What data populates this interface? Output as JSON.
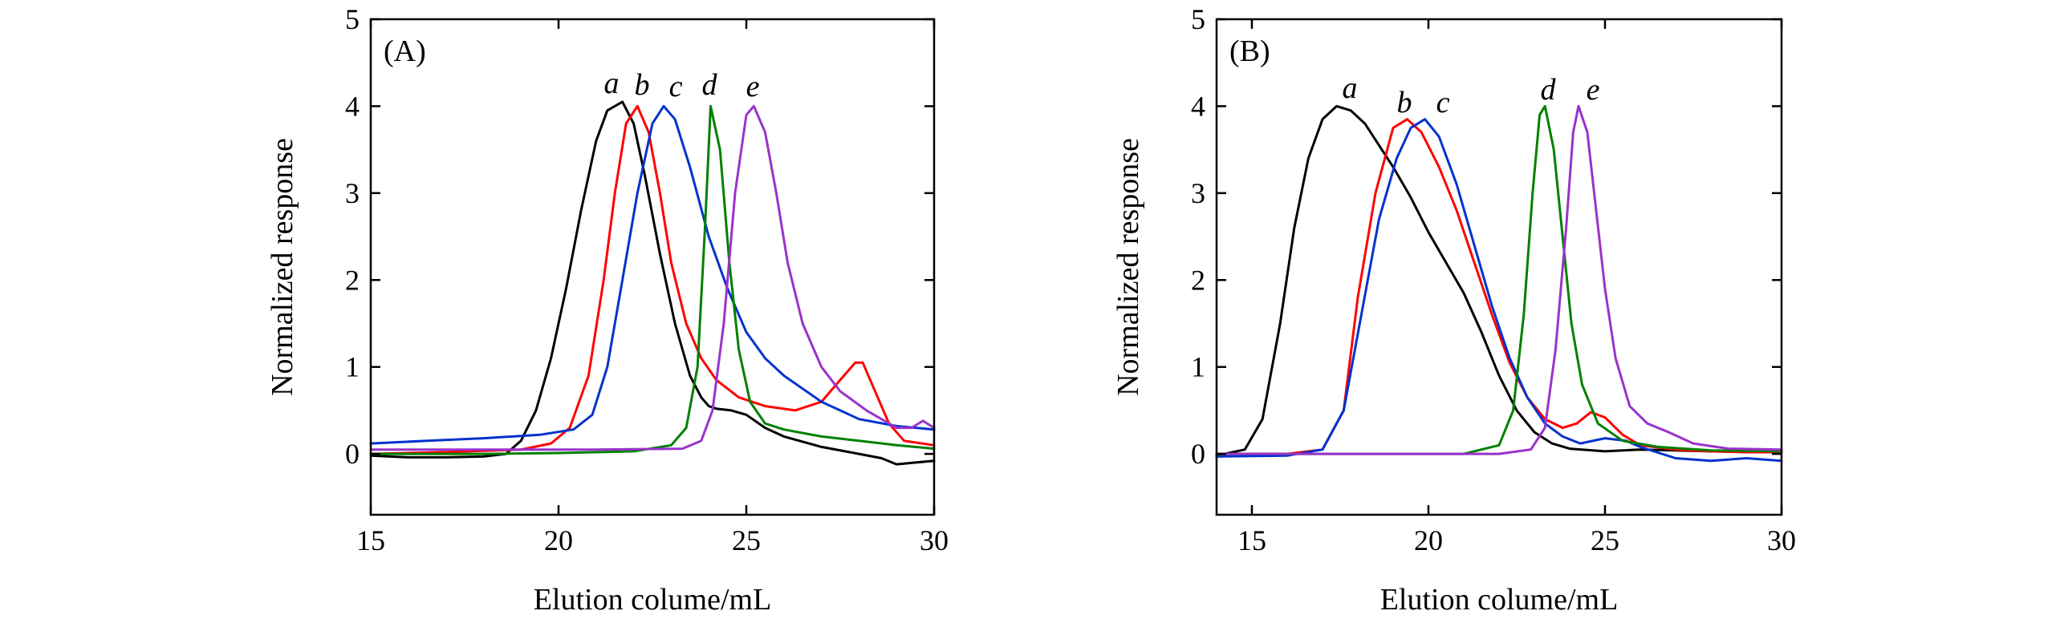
{
  "chart_data": [
    {
      "type": "line",
      "panel_label": "(A)",
      "xlabel": "Elution colume/mL",
      "ylabel": "Normalized response",
      "xlim": [
        15,
        30
      ],
      "ylim": [
        -0.7,
        5
      ],
      "xticks": [
        15,
        20,
        25,
        30
      ],
      "yticks": [
        0,
        1,
        2,
        3,
        4,
        5
      ],
      "xtick_labels": [
        "15",
        "20",
        "25",
        "30"
      ],
      "ytick_labels": [
        "0",
        "1",
        "2",
        "3",
        "4",
        "5"
      ],
      "grid": false,
      "series": [
        {
          "name": "a",
          "color": "#000000",
          "x": [
            15,
            16,
            17,
            18,
            18.6,
            19,
            19.4,
            19.8,
            20.2,
            20.6,
            21.0,
            21.3,
            21.7,
            22.0,
            22.3,
            22.7,
            23.1,
            23.5,
            23.8,
            24.0,
            24.2,
            24.6,
            25.0,
            25.5,
            26.0,
            27.0,
            28.0,
            28.6,
            29.0,
            29.5,
            30
          ],
          "y": [
            -0.02,
            -0.04,
            -0.04,
            -0.03,
            0.0,
            0.15,
            0.5,
            1.1,
            1.9,
            2.8,
            3.6,
            3.95,
            4.05,
            3.8,
            3.2,
            2.3,
            1.5,
            0.9,
            0.65,
            0.55,
            0.52,
            0.5,
            0.45,
            0.3,
            0.2,
            0.08,
            0.0,
            -0.05,
            -0.12,
            -0.1,
            -0.08
          ]
        },
        {
          "name": "b",
          "color": "#ff0000",
          "x": [
            15,
            17,
            19,
            19.8,
            20.3,
            20.8,
            21.2,
            21.5,
            21.8,
            22.1,
            22.4,
            22.7,
            23.0,
            23.4,
            23.8,
            24.2,
            24.8,
            25.5,
            26.3,
            27.0,
            27.5,
            27.9,
            28.1,
            28.4,
            28.8,
            29.2,
            30
          ],
          "y": [
            0.0,
            0.02,
            0.05,
            0.12,
            0.3,
            0.9,
            2.0,
            3.0,
            3.8,
            4.0,
            3.7,
            3.0,
            2.2,
            1.5,
            1.1,
            0.85,
            0.65,
            0.55,
            0.5,
            0.6,
            0.85,
            1.05,
            1.05,
            0.75,
            0.35,
            0.15,
            0.1
          ]
        },
        {
          "name": "c",
          "color": "#0033cc",
          "x": [
            15,
            16.5,
            18,
            19.5,
            20.4,
            20.9,
            21.3,
            21.7,
            22.1,
            22.5,
            22.8,
            23.1,
            23.5,
            24.0,
            24.5,
            25.0,
            25.5,
            26.0,
            26.5,
            27.0,
            27.5,
            28.0,
            29.0,
            30
          ],
          "y": [
            0.12,
            0.15,
            0.18,
            0.22,
            0.28,
            0.45,
            1.0,
            2.0,
            3.0,
            3.8,
            4.0,
            3.85,
            3.3,
            2.5,
            1.9,
            1.4,
            1.1,
            0.9,
            0.75,
            0.6,
            0.5,
            0.4,
            0.32,
            0.28
          ]
        },
        {
          "name": "d",
          "color": "#008000",
          "x": [
            15,
            18,
            20,
            22,
            23.0,
            23.4,
            23.7,
            23.9,
            24.05,
            24.3,
            24.55,
            24.8,
            25.1,
            25.5,
            26.0,
            27.0,
            28.0,
            29.0,
            30
          ],
          "y": [
            0.0,
            0.0,
            0.01,
            0.03,
            0.1,
            0.3,
            1.0,
            2.6,
            4.0,
            3.5,
            2.2,
            1.2,
            0.6,
            0.35,
            0.28,
            0.2,
            0.15,
            0.1,
            0.06
          ]
        },
        {
          "name": "e",
          "color": "#9933cc",
          "x": [
            15,
            18,
            21,
            23.3,
            23.8,
            24.1,
            24.4,
            24.7,
            25.0,
            25.2,
            25.5,
            25.8,
            26.1,
            26.5,
            27.0,
            27.5,
            28.2,
            29.0,
            29.4,
            29.7,
            30
          ],
          "y": [
            0.05,
            0.05,
            0.05,
            0.06,
            0.15,
            0.5,
            1.5,
            3.0,
            3.9,
            4.0,
            3.7,
            3.0,
            2.2,
            1.5,
            1.0,
            0.72,
            0.5,
            0.3,
            0.3,
            0.38,
            0.3
          ]
        }
      ]
    },
    {
      "type": "line",
      "panel_label": "(B)",
      "xlabel": "Elution colume/mL",
      "ylabel": "Normalized response",
      "xlim": [
        14,
        30
      ],
      "ylim": [
        -0.7,
        5
      ],
      "xticks": [
        15,
        20,
        25,
        30
      ],
      "yticks": [
        0,
        1,
        2,
        3,
        4,
        5
      ],
      "xtick_labels": [
        "15",
        "20",
        "25",
        "30"
      ],
      "ytick_labels": [
        "0",
        "1",
        "2",
        "3",
        "4",
        "5"
      ],
      "grid": false,
      "series": [
        {
          "name": "a",
          "color": "#000000",
          "x": [
            14,
            14.8,
            15.3,
            15.8,
            16.2,
            16.6,
            17.0,
            17.4,
            17.8,
            18.2,
            18.6,
            19.0,
            19.5,
            20.0,
            20.5,
            21.0,
            21.5,
            22.0,
            22.5,
            23.0,
            23.5,
            24.0,
            25.0,
            26.0,
            27.0,
            28.0,
            29.0,
            30
          ],
          "y": [
            -0.02,
            0.05,
            0.4,
            1.5,
            2.6,
            3.4,
            3.85,
            4.0,
            3.95,
            3.8,
            3.55,
            3.3,
            2.95,
            2.55,
            2.2,
            1.85,
            1.4,
            0.9,
            0.5,
            0.25,
            0.12,
            0.06,
            0.03,
            0.05,
            0.04,
            0.03,
            0.02,
            0.02
          ]
        },
        {
          "name": "b",
          "color": "#ff0000",
          "x": [
            14,
            16,
            17,
            17.6,
            18.0,
            18.5,
            19.0,
            19.4,
            19.8,
            20.3,
            20.8,
            21.3,
            21.8,
            22.3,
            22.8,
            23.3,
            23.8,
            24.2,
            24.6,
            25.0,
            25.5,
            26.0,
            27.0,
            28.0,
            29.0,
            30
          ],
          "y": [
            0.0,
            0.0,
            0.05,
            0.5,
            1.8,
            3.0,
            3.75,
            3.85,
            3.7,
            3.3,
            2.8,
            2.2,
            1.6,
            1.05,
            0.65,
            0.4,
            0.3,
            0.35,
            0.48,
            0.42,
            0.22,
            0.1,
            0.05,
            0.03,
            0.02,
            0.02
          ]
        },
        {
          "name": "c",
          "color": "#0033cc",
          "x": [
            14,
            16,
            17,
            17.6,
            18.1,
            18.6,
            19.1,
            19.5,
            19.9,
            20.3,
            20.8,
            21.3,
            21.8,
            22.3,
            22.8,
            23.3,
            23.8,
            24.3,
            25.0,
            25.6,
            26.0,
            27.0,
            28.0,
            29.0,
            30
          ],
          "y": [
            -0.03,
            -0.02,
            0.05,
            0.5,
            1.6,
            2.7,
            3.4,
            3.75,
            3.85,
            3.65,
            3.1,
            2.4,
            1.7,
            1.1,
            0.65,
            0.35,
            0.2,
            0.12,
            0.18,
            0.15,
            0.08,
            -0.05,
            -0.08,
            -0.05,
            -0.08
          ]
        },
        {
          "name": "d",
          "color": "#008000",
          "x": [
            14,
            18,
            21,
            22.0,
            22.4,
            22.7,
            22.95,
            23.15,
            23.3,
            23.55,
            23.8,
            24.05,
            24.35,
            24.8,
            25.5,
            26.5,
            28.0,
            30
          ],
          "y": [
            0.0,
            0.0,
            0.0,
            0.1,
            0.5,
            1.6,
            3.0,
            3.9,
            4.0,
            3.5,
            2.5,
            1.5,
            0.8,
            0.35,
            0.15,
            0.08,
            0.04,
            0.03
          ]
        },
        {
          "name": "e",
          "color": "#9933cc",
          "x": [
            14,
            18,
            22,
            22.9,
            23.3,
            23.6,
            23.9,
            24.1,
            24.25,
            24.5,
            24.75,
            25.0,
            25.3,
            25.7,
            26.2,
            26.8,
            27.5,
            28.5,
            30
          ],
          "y": [
            0.0,
            0.0,
            0.0,
            0.05,
            0.3,
            1.2,
            2.6,
            3.7,
            4.0,
            3.7,
            2.8,
            1.9,
            1.1,
            0.55,
            0.35,
            0.25,
            0.12,
            0.06,
            0.05
          ]
        }
      ]
    }
  ]
}
